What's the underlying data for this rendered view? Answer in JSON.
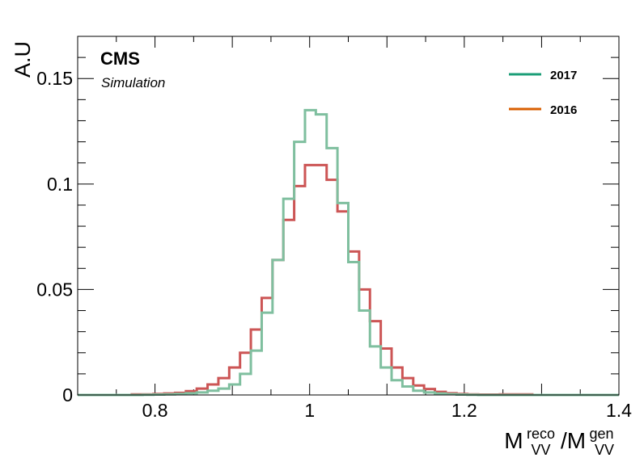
{
  "chart_data": {
    "type": "histogram",
    "ylabel": "A.U",
    "xlabel": {
      "base": "M",
      "sup1": "reco",
      "sub1": "VV",
      "sep": "/M",
      "sup2": "gen",
      "sub2": "VV"
    },
    "annotation": {
      "experiment": "CMS",
      "subtitle": "Simulation"
    },
    "xlim": [
      0.7,
      1.4
    ],
    "ylim": [
      0,
      0.17
    ],
    "xticks": [
      {
        "value": 0.8,
        "label": "0.8"
      },
      {
        "value": 1.0,
        "label": "1"
      },
      {
        "value": 1.2,
        "label": "1.2"
      },
      {
        "value": 1.4,
        "label": "1.4"
      }
    ],
    "yticks": [
      {
        "value": 0,
        "label": "0"
      },
      {
        "value": 0.05,
        "label": "0.05"
      },
      {
        "value": 0.1,
        "label": "0.1"
      },
      {
        "value": 0.15,
        "label": "0.15"
      }
    ],
    "legend": {
      "position": "top-right",
      "entries": [
        {
          "name": "2017",
          "color": "#1b9e77"
        },
        {
          "name": "2016",
          "color": "#d95f02"
        }
      ]
    },
    "bin_edges": [
      0.7,
      0.714,
      0.728,
      0.742,
      0.756,
      0.77,
      0.784,
      0.798,
      0.812,
      0.826,
      0.84,
      0.854,
      0.868,
      0.882,
      0.896,
      0.91,
      0.924,
      0.938,
      0.952,
      0.966,
      0.98,
      0.994,
      1.008,
      1.022,
      1.036,
      1.05,
      1.064,
      1.078,
      1.092,
      1.106,
      1.12,
      1.134,
      1.148,
      1.162,
      1.176,
      1.19,
      1.204,
      1.218,
      1.232,
      1.246,
      1.26,
      1.274,
      1.288,
      1.302,
      1.316,
      1.33,
      1.344,
      1.358,
      1.372,
      1.386,
      1.4
    ],
    "series": [
      {
        "name": "2016",
        "color": "#cc5555",
        "values": [
          0,
          0,
          0,
          0,
          0,
          0.0003,
          0.0003,
          0.0005,
          0.0007,
          0.001,
          0.0018,
          0.003,
          0.005,
          0.008,
          0.013,
          0.02,
          0.031,
          0.046,
          0.064,
          0.083,
          0.099,
          0.109,
          0.109,
          0.102,
          0.087,
          0.068,
          0.05,
          0.035,
          0.022,
          0.013,
          0.008,
          0.0045,
          0.0028,
          0.0015,
          0.0008,
          0.0005,
          0.0003,
          0.0002,
          0.0002,
          0.0003,
          0.0003,
          0.0003,
          0,
          0,
          0,
          0,
          0,
          0,
          0,
          0
        ]
      },
      {
        "name": "2017",
        "color": "#7fbf9f",
        "values": [
          0,
          0,
          0,
          0,
          0,
          0,
          0.0001,
          0.0002,
          0.0003,
          0.0005,
          0.0008,
          0.0012,
          0.002,
          0.003,
          0.005,
          0.01,
          0.021,
          0.039,
          0.064,
          0.093,
          0.12,
          0.135,
          0.133,
          0.117,
          0.091,
          0.063,
          0.04,
          0.023,
          0.013,
          0.007,
          0.004,
          0.002,
          0.0012,
          0.0007,
          0.0004,
          0.0002,
          0.0001,
          0,
          0,
          0,
          0,
          0,
          0,
          0,
          0,
          0,
          0,
          0,
          0,
          0
        ]
      }
    ]
  }
}
